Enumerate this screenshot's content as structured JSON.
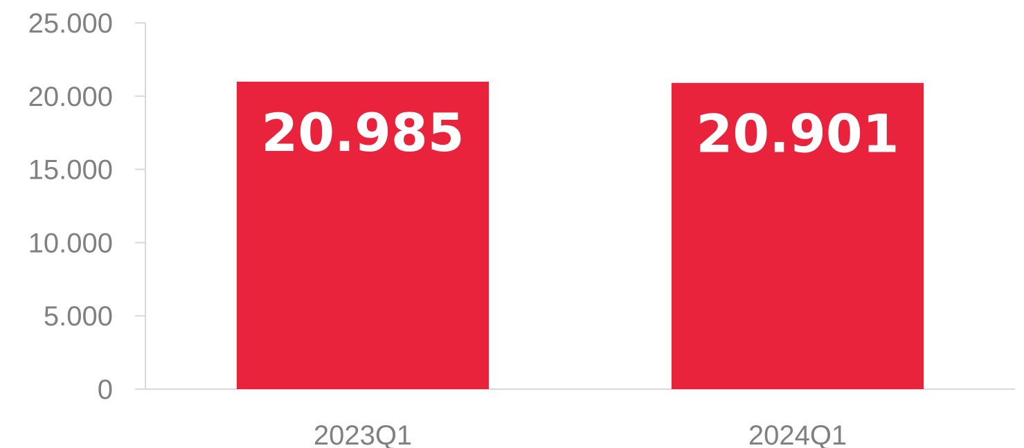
{
  "chart_data": {
    "type": "bar",
    "categories": [
      "2023Q1",
      "2024Q1"
    ],
    "values": [
      20985,
      20901
    ],
    "data_labels": [
      "20.985",
      "20.901"
    ],
    "title": "",
    "xlabel": "",
    "ylabel": "",
    "ylim": [
      0,
      25000
    ],
    "yticks": [
      0,
      5000,
      10000,
      15000,
      20000,
      25000
    ],
    "ytick_labels": [
      "0",
      "5.000",
      "10.000",
      "15.000",
      "20.000",
      "25.000"
    ],
    "grid": false,
    "legend": "none",
    "bar_color": "#e8233b",
    "label_color": "#ffffff",
    "axis_text_color": "#808080",
    "axis_line_color": "#d9d9d9"
  }
}
